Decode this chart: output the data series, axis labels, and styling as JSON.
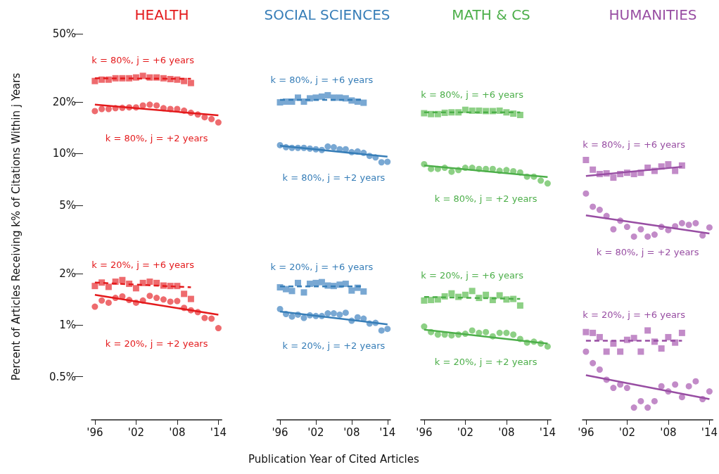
{
  "chart_data": [
    {
      "type": "scatter",
      "title": "HEALTH",
      "ylabel": "Percent of Articles Receiving k% of Citations Within j Years",
      "log": "y",
      "xlim": [
        1995.5,
        2014.5
      ],
      "xticks": [
        {
          "value": 1996,
          "label": "'96"
        },
        {
          "value": 2002,
          "label": "'02"
        },
        {
          "value": 2008,
          "label": "'08"
        },
        {
          "value": 2014,
          "label": "'14"
        }
      ],
      "ylim": [
        0.28,
        50
      ],
      "yticks": [
        {
          "value": 0.5,
          "label": "0.5%"
        },
        {
          "value": 1,
          "label": "1%"
        },
        {
          "value": 2,
          "label": "2%"
        },
        {
          "value": 5,
          "label": "5%"
        },
        {
          "value": 10,
          "label": "10%"
        },
        {
          "value": 20,
          "label": "20%"
        },
        {
          "value": 50,
          "label": "50%"
        }
      ],
      "series": [
        {
          "name": "k = 80%, j = +6 years",
          "color": "#ee6b6e",
          "marker": "square",
          "x": [
            1996,
            1997,
            1998,
            1999,
            2000,
            2001,
            2002,
            2003,
            2004,
            2005,
            2006,
            2007,
            2008,
            2009,
            2010
          ],
          "values": [
            26.5,
            27,
            27,
            27.5,
            27.5,
            27.5,
            27.8,
            28.4,
            27.8,
            27.8,
            27.5,
            27.2,
            27,
            26.5,
            25.8
          ]
        },
        {
          "type": "line",
          "color": "#e41a1c",
          "line_style": "dashed",
          "marker": "none",
          "x": [
            1996,
            2010
          ],
          "values": [
            27.5,
            27.3
          ]
        },
        {
          "name": "k = 80%, j = +2 years",
          "color": "#ee6b6e",
          "marker": "circle",
          "x": [
            1996,
            1997,
            1998,
            1999,
            2000,
            2001,
            2002,
            2003,
            2004,
            2005,
            2006,
            2007,
            2008,
            2009,
            2010,
            2011,
            2012,
            2013,
            2014
          ],
          "values": [
            17.7,
            18.2,
            18.2,
            18.4,
            18.5,
            18.6,
            18.6,
            19.1,
            19.3,
            19.1,
            18.4,
            18.2,
            18.2,
            17.8,
            17.3,
            16.9,
            16.3,
            15.9,
            15.2
          ]
        },
        {
          "type": "line",
          "color": "#e41a1c",
          "line_style": "solid",
          "marker": "none",
          "x": [
            1996,
            2014
          ],
          "values": [
            19.3,
            16.7
          ]
        },
        {
          "name": "k = 20%, j = +6 years",
          "color": "#ee6b6e",
          "marker": "square",
          "x": [
            1996,
            1997,
            1998,
            1999,
            2000,
            2001,
            2002,
            2003,
            2004,
            2005,
            2006,
            2007,
            2008,
            2009,
            2010
          ],
          "values": [
            1.69,
            1.77,
            1.67,
            1.79,
            1.83,
            1.74,
            1.64,
            1.76,
            1.79,
            1.76,
            1.7,
            1.69,
            1.69,
            1.52,
            1.42
          ]
        },
        {
          "type": "line",
          "color": "#e41a1c",
          "line_style": "dashed",
          "marker": "none",
          "x": [
            1996,
            2010
          ],
          "values": [
            1.77,
            1.66
          ]
        },
        {
          "name": "k = 20%, j = +2 years",
          "color": "#ee6b6e",
          "marker": "circle",
          "x": [
            1996,
            1997,
            1998,
            1999,
            2000,
            2001,
            2002,
            2003,
            2004,
            2005,
            2006,
            2007,
            2008,
            2009,
            2010,
            2011,
            2012,
            2013,
            2014
          ],
          "values": [
            1.28,
            1.39,
            1.35,
            1.44,
            1.47,
            1.4,
            1.35,
            1.39,
            1.48,
            1.44,
            1.41,
            1.37,
            1.38,
            1.26,
            1.22,
            1.19,
            1.1,
            1.09,
            0.96
          ]
        },
        {
          "type": "line",
          "color": "#e41a1c",
          "line_style": "solid",
          "marker": "none",
          "x": [
            1996,
            2014
          ],
          "values": [
            1.5,
            1.15
          ]
        }
      ]
    },
    {
      "type": "scatter",
      "title": "SOCIAL SCIENCES",
      "xlabel": "Publication Year of Cited Articles",
      "log": "y",
      "tick_labels": "x",
      "xlim": [
        1995.5,
        2014.5
      ],
      "xticks": [
        {
          "value": 1996,
          "label": "'96"
        },
        {
          "value": 2002,
          "label": "'02"
        },
        {
          "value": 2008,
          "label": "'08"
        },
        {
          "value": 2014,
          "label": "'14"
        }
      ],
      "ylim": [
        0.28,
        50
      ],
      "series": [
        {
          "name": "k = 80%, j = +6 years",
          "color": "#79a8d3",
          "marker": "square",
          "x": [
            1996,
            1997,
            1998,
            1999,
            2000,
            2001,
            2002,
            2003,
            2004,
            2005,
            2006,
            2007,
            2008,
            2009,
            2010
          ],
          "values": [
            19.9,
            20.1,
            20.1,
            21.2,
            20.1,
            21,
            21.2,
            21.5,
            21.9,
            21.2,
            21.2,
            21,
            20.4,
            20.1,
            19.8
          ]
        },
        {
          "type": "line",
          "color": "#377eb8",
          "line_style": "dashed",
          "marker": "none",
          "x": [
            1996,
            2010
          ],
          "values": [
            20.6,
            20.6
          ]
        },
        {
          "name": "k = 80%, j = +2 years",
          "color": "#79a8d3",
          "marker": "circle",
          "x": [
            1996,
            1997,
            1998,
            1999,
            2000,
            2001,
            2002,
            2003,
            2004,
            2005,
            2006,
            2007,
            2008,
            2009,
            2010,
            2011,
            2012,
            2013,
            2014
          ],
          "values": [
            11.2,
            10.9,
            10.8,
            10.8,
            10.8,
            10.7,
            10.6,
            10.5,
            11,
            10.9,
            10.6,
            10.6,
            10.2,
            10.3,
            10.1,
            9.7,
            9.5,
            8.9,
            8.96
          ]
        },
        {
          "type": "line",
          "color": "#377eb8",
          "line_style": "solid",
          "marker": "none",
          "x": [
            1996,
            2014
          ],
          "values": [
            11.1,
            9.6
          ]
        },
        {
          "name": "k = 20%, j = +6 years",
          "color": "#79a8d3",
          "marker": "square",
          "x": [
            1996,
            1997,
            1998,
            1999,
            2000,
            2001,
            2002,
            2003,
            2004,
            2005,
            2006,
            2007,
            2008,
            2009,
            2010
          ],
          "values": [
            1.66,
            1.62,
            1.58,
            1.76,
            1.55,
            1.74,
            1.76,
            1.78,
            1.7,
            1.69,
            1.72,
            1.74,
            1.59,
            1.65,
            1.57
          ]
        },
        {
          "type": "line",
          "color": "#377eb8",
          "line_style": "dashed",
          "marker": "none",
          "x": [
            1996,
            2010
          ],
          "values": [
            1.68,
            1.68
          ]
        },
        {
          "name": "k = 20%, j = +2 years",
          "color": "#79a8d3",
          "marker": "circle",
          "x": [
            1996,
            1997,
            1998,
            1999,
            2000,
            2001,
            2002,
            2003,
            2004,
            2005,
            2006,
            2007,
            2008,
            2009,
            2010,
            2011,
            2012,
            2013,
            2014
          ],
          "values": [
            1.24,
            1.16,
            1.12,
            1.15,
            1.1,
            1.14,
            1.13,
            1.13,
            1.17,
            1.17,
            1.15,
            1.18,
            1.06,
            1.11,
            1.09,
            1.02,
            1.03,
            0.93,
            0.95
          ]
        },
        {
          "type": "line",
          "color": "#377eb8",
          "line_style": "solid",
          "marker": "none",
          "x": [
            1996,
            2014
          ],
          "values": [
            1.2,
            1.01
          ]
        }
      ]
    },
    {
      "type": "scatter",
      "title": "MATH & CS",
      "log": "y",
      "tick_labels": "x",
      "xlim": [
        1995.5,
        2014.5
      ],
      "xticks": [
        {
          "value": 1996,
          "label": "'96"
        },
        {
          "value": 2002,
          "label": "'02"
        },
        {
          "value": 2008,
          "label": "'08"
        },
        {
          "value": 2014,
          "label": "'14"
        }
      ],
      "ylim": [
        0.28,
        50
      ],
      "series": [
        {
          "name": "k = 80%, j = +6 years",
          "color": "#8dd085",
          "marker": "square",
          "x": [
            1996,
            1997,
            1998,
            1999,
            2000,
            2001,
            2002,
            2003,
            2004,
            2005,
            2006,
            2007,
            2008,
            2009,
            2010
          ],
          "values": [
            17.2,
            17,
            17,
            17.3,
            17.4,
            17.4,
            18,
            17.8,
            17.8,
            17.7,
            17.7,
            17.8,
            17.4,
            17.1,
            16.8
          ]
        },
        {
          "type": "line",
          "color": "#4daf4a",
          "line_style": "dashed",
          "marker": "none",
          "x": [
            1996,
            2010
          ],
          "values": [
            17.4,
            17.4
          ]
        },
        {
          "name": "k = 80%, j = +2 years",
          "color": "#8dd085",
          "marker": "circle",
          "x": [
            1996,
            1997,
            1998,
            1999,
            2000,
            2001,
            2002,
            2003,
            2004,
            2005,
            2006,
            2007,
            2008,
            2009,
            2010,
            2011,
            2012,
            2013,
            2014
          ],
          "values": [
            8.68,
            8.14,
            8.14,
            8.27,
            7.84,
            8.02,
            8.27,
            8.27,
            8.14,
            8.14,
            8.14,
            7.94,
            8.02,
            7.89,
            7.77,
            7.34,
            7.34,
            6.96,
            6.7
          ]
        },
        {
          "type": "line",
          "color": "#4daf4a",
          "line_style": "solid",
          "marker": "none",
          "x": [
            1996,
            2014
          ],
          "values": [
            8.53,
            7.3
          ]
        },
        {
          "name": "k = 20%, j = +6 years",
          "color": "#8dd085",
          "marker": "square",
          "x": [
            1996,
            1997,
            1998,
            1999,
            2000,
            2001,
            2002,
            2003,
            2004,
            2005,
            2006,
            2007,
            2008,
            2009,
            2010
          ],
          "values": [
            1.39,
            1.4,
            1.41,
            1.47,
            1.53,
            1.46,
            1.5,
            1.58,
            1.44,
            1.5,
            1.4,
            1.49,
            1.41,
            1.42,
            1.3
          ]
        },
        {
          "type": "line",
          "color": "#4daf4a",
          "line_style": "dashed",
          "marker": "none",
          "x": [
            1996,
            2010
          ],
          "values": [
            1.46,
            1.42
          ]
        },
        {
          "name": "k = 20%, j = +2 years",
          "color": "#8dd085",
          "marker": "circle",
          "x": [
            1996,
            1997,
            1998,
            1999,
            2000,
            2001,
            2002,
            2003,
            2004,
            2005,
            2006,
            2007,
            2008,
            2009,
            2010,
            2011,
            2012,
            2013,
            2014
          ],
          "values": [
            0.98,
            0.91,
            0.88,
            0.88,
            0.87,
            0.88,
            0.89,
            0.93,
            0.9,
            0.91,
            0.86,
            0.9,
            0.9,
            0.88,
            0.83,
            0.79,
            0.8,
            0.78,
            0.75
          ]
        },
        {
          "type": "line",
          "color": "#4daf4a",
          "line_style": "solid",
          "marker": "none",
          "x": [
            1996,
            2014
          ],
          "values": [
            0.94,
            0.78
          ]
        }
      ]
    },
    {
      "type": "scatter",
      "title": "HUMANITIES",
      "log": "y",
      "tick_labels": "x",
      "xlim": [
        1995.5,
        2014.5
      ],
      "xticks": [
        {
          "value": 1996,
          "label": "'96"
        },
        {
          "value": 2002,
          "label": "'02"
        },
        {
          "value": 2008,
          "label": "'08"
        },
        {
          "value": 2014,
          "label": "'14"
        }
      ],
      "ylim": [
        0.28,
        50
      ],
      "series": [
        {
          "name": "k = 80%, j = +6 years",
          "color": "#c28bc8",
          "marker": "square",
          "x": [
            1996,
            1997,
            1998,
            1999,
            2000,
            2001,
            2002,
            2003,
            2004,
            2005,
            2006,
            2007,
            2008,
            2009,
            2010
          ],
          "values": [
            9.18,
            8.06,
            7.6,
            7.67,
            7.24,
            7.6,
            7.73,
            7.6,
            7.73,
            8.27,
            7.93,
            8.41,
            8.66,
            7.93,
            8.52
          ]
        },
        {
          "type": "line",
          "color": "#984ea3",
          "line_style": "solid",
          "marker": "none",
          "x": [
            1996,
            2010
          ],
          "values": [
            7.41,
            8.38
          ]
        },
        {
          "name": "k = 80%, j = +2 years",
          "color": "#c28bc8",
          "marker": "circle",
          "x": [
            1996,
            1997,
            1998,
            1999,
            2000,
            2001,
            2002,
            2003,
            2004,
            2005,
            2006,
            2007,
            2008,
            2009,
            2010,
            2011,
            2012,
            2013,
            2014
          ],
          "values": [
            5.85,
            4.9,
            4.7,
            4.33,
            3.62,
            4.06,
            3.74,
            3.28,
            3.62,
            3.28,
            3.37,
            3.74,
            3.58,
            3.77,
            3.93,
            3.84,
            3.93,
            3.33,
            3.71
          ]
        },
        {
          "type": "line",
          "color": "#984ea3",
          "line_style": "solid",
          "marker": "none",
          "x": [
            1996,
            2014
          ],
          "values": [
            4.36,
            3.42
          ]
        },
        {
          "name": "k = 20%, j = +6 years",
          "color": "#c28bc8",
          "marker": "square",
          "x": [
            1996,
            1997,
            1998,
            1999,
            2000,
            2001,
            2002,
            2003,
            2004,
            2005,
            2006,
            2007,
            2008,
            2009,
            2010
          ],
          "values": [
            0.91,
            0.9,
            0.85,
            0.7,
            0.78,
            0.7,
            0.82,
            0.84,
            0.7,
            0.93,
            0.8,
            0.73,
            0.85,
            0.79,
            0.9
          ]
        },
        {
          "type": "line",
          "color": "#984ea3",
          "line_style": "dashed",
          "marker": "none",
          "x": [
            1996,
            2010
          ],
          "values": [
            0.81,
            0.81
          ]
        },
        {
          "color": "#c28bc8",
          "marker": "circle",
          "x": [
            1996,
            1997,
            1998,
            1999,
            2000,
            2001,
            2002,
            2003,
            2004,
            2005,
            2006,
            2007,
            2008,
            2009,
            2010,
            2011,
            2012,
            2013,
            2014
          ],
          "values": [
            0.7,
            0.6,
            0.55,
            0.48,
            0.43,
            0.45,
            0.43,
            0.33,
            0.36,
            0.33,
            0.36,
            0.44,
            0.41,
            0.45,
            0.38,
            0.44,
            0.47,
            0.37,
            0.41
          ]
        },
        {
          "type": "line",
          "color": "#984ea3",
          "line_style": "solid",
          "marker": "none",
          "x": [
            1996,
            2014
          ],
          "values": [
            0.51,
            0.37
          ]
        }
      ]
    }
  ]
}
